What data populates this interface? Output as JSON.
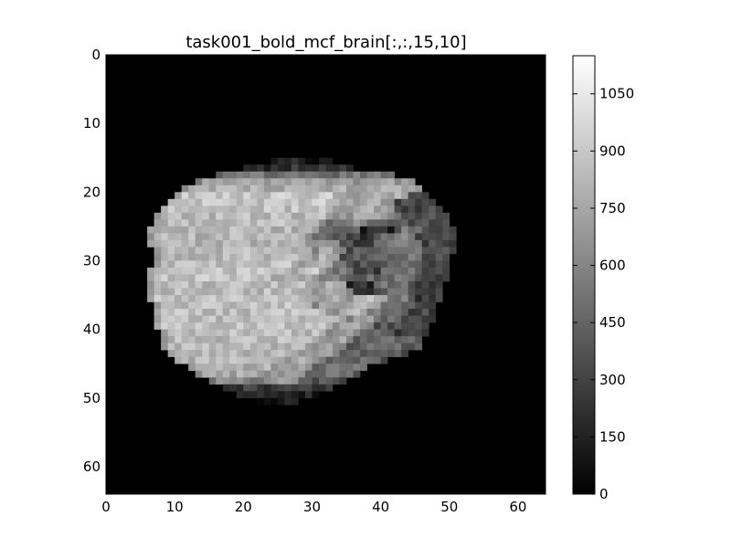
{
  "chart_data": {
    "type": "heatmap",
    "title": "task001_bold_mcf_brain[:,:,15,10]",
    "xlabel": "",
    "ylabel": "",
    "grid_size": [
      64,
      64
    ],
    "xlim": [
      0,
      64
    ],
    "ylim": [
      64,
      0
    ],
    "x_ticks": [
      "0",
      "10",
      "20",
      "30",
      "40",
      "50",
      "60"
    ],
    "y_ticks": [
      "0",
      "10",
      "20",
      "30",
      "40",
      "50",
      "60"
    ],
    "colormap": "gray",
    "vmin": 0,
    "vmax": 1150,
    "colorbar_ticks": [
      "0",
      "150",
      "300",
      "450",
      "600",
      "750",
      "900",
      "1050"
    ],
    "colorbar_tick_values": [
      0,
      150,
      300,
      450,
      600,
      750,
      900,
      1050
    ],
    "row_segments": [
      [
        15,
        [
          [
            24,
            33,
            130
          ]
        ]
      ],
      [
        16,
        [
          [
            20,
            36,
            220
          ]
        ]
      ],
      [
        17,
        [
          [
            16,
            42,
            520
          ]
        ]
      ],
      [
        18,
        [
          [
            13,
            45,
            700
          ]
        ]
      ],
      [
        19,
        [
          [
            11,
            46,
            780
          ]
        ]
      ],
      [
        20,
        [
          [
            10,
            34,
            900
          ],
          [
            34,
            44,
            760
          ],
          [
            44,
            47,
            320
          ]
        ]
      ],
      [
        21,
        [
          [
            9,
            34,
            890
          ],
          [
            34,
            42,
            760
          ],
          [
            42,
            48,
            330
          ]
        ]
      ],
      [
        22,
        [
          [
            8,
            34,
            870
          ],
          [
            34,
            42,
            760
          ],
          [
            42,
            49,
            320
          ]
        ]
      ],
      [
        23,
        [
          [
            7,
            33,
            840
          ],
          [
            33,
            43,
            720
          ],
          [
            43,
            50,
            320
          ]
        ]
      ],
      [
        24,
        [
          [
            7,
            32,
            840
          ],
          [
            32,
            35,
            560
          ],
          [
            35,
            38,
            650
          ],
          [
            38,
            44,
            450
          ],
          [
            44,
            50,
            340
          ]
        ]
      ],
      [
        25,
        [
          [
            6,
            31,
            820
          ],
          [
            31,
            34,
            560
          ],
          [
            34,
            37,
            520
          ],
          [
            37,
            42,
            170
          ],
          [
            42,
            47,
            520
          ],
          [
            47,
            51,
            330
          ]
        ]
      ],
      [
        26,
        [
          [
            6,
            30,
            820
          ],
          [
            30,
            33,
            620
          ],
          [
            33,
            35,
            500
          ],
          [
            35,
            39,
            250
          ],
          [
            39,
            45,
            560
          ],
          [
            45,
            51,
            360
          ]
        ]
      ],
      [
        27,
        [
          [
            6,
            30,
            820
          ],
          [
            30,
            34,
            720
          ],
          [
            34,
            37,
            330
          ],
          [
            37,
            39,
            200
          ],
          [
            39,
            46,
            580
          ],
          [
            46,
            51,
            350
          ]
        ]
      ],
      [
        28,
        [
          [
            7,
            30,
            830
          ],
          [
            30,
            35,
            720
          ],
          [
            35,
            39,
            380
          ],
          [
            39,
            47,
            540
          ],
          [
            47,
            51,
            330
          ]
        ]
      ],
      [
        29,
        [
          [
            7,
            30,
            840
          ],
          [
            30,
            34,
            780
          ],
          [
            34,
            38,
            420
          ],
          [
            38,
            46,
            520
          ],
          [
            46,
            50,
            320
          ]
        ]
      ],
      [
        30,
        [
          [
            7,
            28,
            860
          ],
          [
            28,
            33,
            800
          ],
          [
            33,
            36,
            520
          ],
          [
            36,
            40,
            330
          ],
          [
            40,
            46,
            510
          ],
          [
            46,
            50,
            300
          ]
        ]
      ],
      [
        31,
        [
          [
            6,
            27,
            870
          ],
          [
            27,
            32,
            930
          ],
          [
            32,
            36,
            560
          ],
          [
            36,
            40,
            330
          ],
          [
            40,
            46,
            520
          ],
          [
            46,
            50,
            300
          ]
        ]
      ],
      [
        32,
        [
          [
            6,
            25,
            880
          ],
          [
            25,
            31,
            800
          ],
          [
            31,
            35,
            620
          ],
          [
            35,
            40,
            460
          ],
          [
            40,
            46,
            520
          ],
          [
            46,
            50,
            290
          ]
        ]
      ],
      [
        33,
        [
          [
            6,
            31,
            850
          ],
          [
            31,
            35,
            780
          ],
          [
            35,
            39,
            210
          ],
          [
            39,
            45,
            500
          ],
          [
            45,
            49,
            280
          ]
        ]
      ],
      [
        34,
        [
          [
            6,
            31,
            850
          ],
          [
            31,
            36,
            760
          ],
          [
            36,
            39,
            260
          ],
          [
            39,
            45,
            470
          ],
          [
            45,
            49,
            290
          ]
        ]
      ],
      [
        35,
        [
          [
            6,
            30,
            860
          ],
          [
            30,
            36,
            760
          ],
          [
            36,
            41,
            900
          ],
          [
            41,
            45,
            520
          ],
          [
            45,
            49,
            300
          ]
        ]
      ],
      [
        36,
        [
          [
            7,
            30,
            860
          ],
          [
            30,
            35,
            720
          ],
          [
            35,
            40,
            820
          ],
          [
            40,
            45,
            480
          ],
          [
            45,
            48,
            320
          ]
        ]
      ],
      [
        37,
        [
          [
            7,
            33,
            860
          ],
          [
            33,
            38,
            820
          ],
          [
            38,
            44,
            560
          ],
          [
            44,
            48,
            320
          ]
        ]
      ],
      [
        38,
        [
          [
            7,
            35,
            860
          ],
          [
            35,
            40,
            720
          ],
          [
            40,
            43,
            520
          ],
          [
            43,
            48,
            320
          ]
        ]
      ],
      [
        39,
        [
          [
            7,
            33,
            860
          ],
          [
            33,
            39,
            760
          ],
          [
            39,
            47,
            360
          ]
        ]
      ],
      [
        40,
        [
          [
            8,
            32,
            850
          ],
          [
            32,
            37,
            740
          ],
          [
            37,
            42,
            520
          ],
          [
            42,
            47,
            320
          ]
        ]
      ],
      [
        41,
        [
          [
            8,
            31,
            840
          ],
          [
            31,
            36,
            720
          ],
          [
            36,
            46,
            480
          ]
        ]
      ],
      [
        42,
        [
          [
            8,
            30,
            830
          ],
          [
            30,
            35,
            720
          ],
          [
            35,
            46,
            460
          ]
        ]
      ],
      [
        43,
        [
          [
            9,
            28,
            820
          ],
          [
            28,
            34,
            760
          ],
          [
            34,
            44,
            440
          ]
        ]
      ],
      [
        44,
        [
          [
            10,
            26,
            820
          ],
          [
            26,
            32,
            760
          ],
          [
            32,
            41,
            460
          ]
        ]
      ],
      [
        45,
        [
          [
            12,
            25,
            800
          ],
          [
            25,
            30,
            760
          ],
          [
            30,
            38,
            520
          ]
        ]
      ],
      [
        46,
        [
          [
            13,
            23,
            760
          ],
          [
            23,
            29,
            740
          ],
          [
            29,
            37,
            500
          ]
        ]
      ],
      [
        47,
        [
          [
            15,
            22,
            620
          ],
          [
            22,
            28,
            680
          ],
          [
            28,
            35,
            400
          ]
        ]
      ],
      [
        48,
        [
          [
            17,
            33,
            260
          ]
        ]
      ],
      [
        49,
        [
          [
            19,
            31,
            150
          ]
        ]
      ],
      [
        50,
        [
          [
            22,
            28,
            90
          ]
        ]
      ]
    ]
  }
}
